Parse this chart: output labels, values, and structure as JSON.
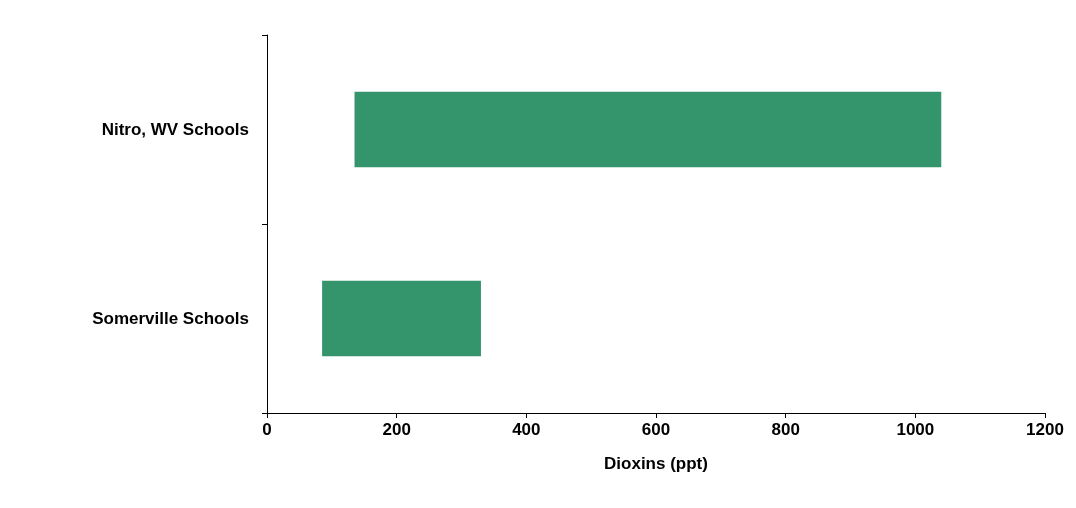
{
  "chart_data": {
    "type": "bar",
    "orientation": "horizontal",
    "xlabel": "Dioxins (ppt)",
    "categories": [
      "Nitro, WV Schools",
      "Somerville Schools"
    ],
    "base": [
      135,
      85
    ],
    "values": [
      905,
      245
    ],
    "color": "#34946c",
    "xlim": [
      0,
      1200
    ],
    "xticks": [
      0,
      200,
      400,
      600,
      800,
      1000,
      1200
    ],
    "grid": false
  }
}
